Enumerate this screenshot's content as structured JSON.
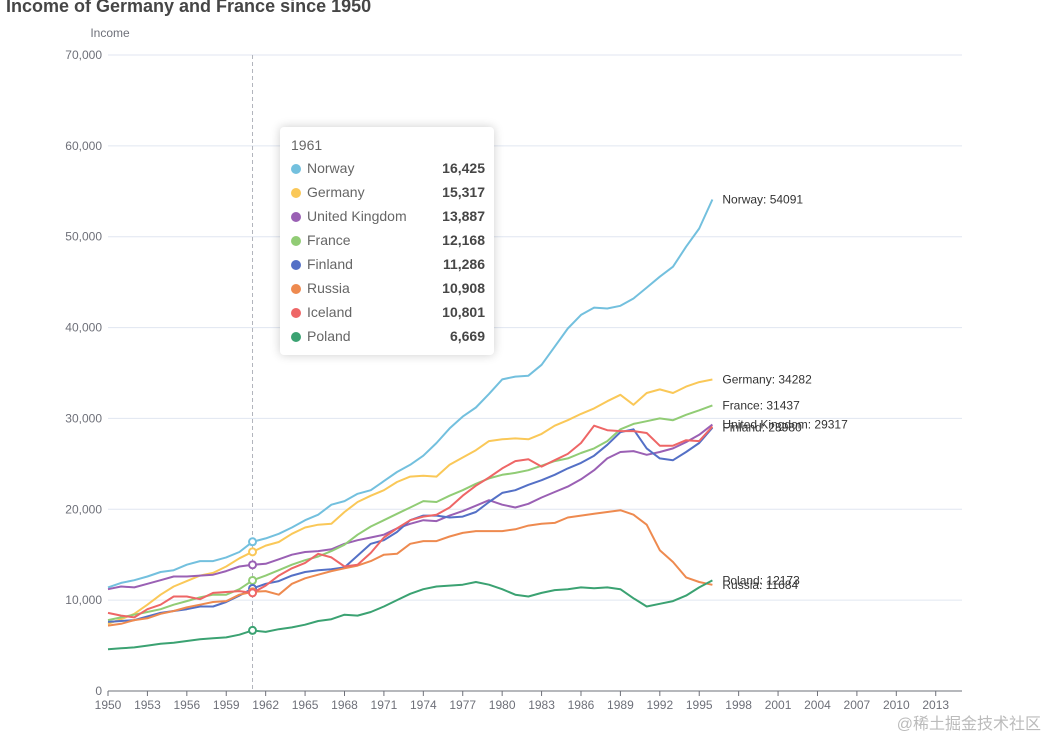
{
  "chart_data": {
    "type": "line",
    "title": "Income of Germany and France since 1950",
    "ylabel": "Income",
    "xlabel": "",
    "ylim": [
      0,
      70000
    ],
    "y_ticks": [
      0,
      10000,
      20000,
      30000,
      40000,
      50000,
      60000,
      70000
    ],
    "y_tick_labels": [
      "0",
      "10,000",
      "20,000",
      "30,000",
      "40,000",
      "50,000",
      "60,000",
      "70,000"
    ],
    "x_ticks": [
      1950,
      1953,
      1956,
      1959,
      1962,
      1965,
      1968,
      1971,
      1974,
      1977,
      1980,
      1983,
      1986,
      1989,
      1992,
      1995,
      1998,
      2001,
      2004,
      2007,
      2010,
      2013
    ],
    "x_tick_labels": [
      "1950",
      "1953",
      "1956",
      "1959",
      "1962",
      "1965",
      "1968",
      "1971",
      "1974",
      "1977",
      "1980",
      "1983",
      "1986",
      "1989",
      "1992",
      "1995",
      "1998",
      "2001",
      "2004",
      "2007",
      "2010",
      "2013"
    ],
    "xlim": [
      1950,
      2015
    ],
    "grid": true,
    "x_start": 1950,
    "x_end": 1996,
    "series": [
      {
        "name": "Norway",
        "color": "#73c0de",
        "end_label": "Norway: 54091",
        "values": [
          11400,
          11900,
          12200,
          12600,
          13100,
          13300,
          13900,
          14300,
          14300,
          14700,
          15300,
          16425,
          16800,
          17300,
          18000,
          18800,
          19400,
          20500,
          20900,
          21700,
          22100,
          23100,
          24100,
          24900,
          25900,
          27300,
          28900,
          30200,
          31200,
          32700,
          34300,
          34600,
          34700,
          35900,
          37900,
          39900,
          41400,
          42200,
          42100,
          42400,
          43200,
          44400,
          45600,
          46700,
          48900,
          50900,
          54091
        ]
      },
      {
        "name": "Germany",
        "color": "#fac858",
        "end_label": "Germany: 34282",
        "values": [
          7400,
          7900,
          8500,
          9500,
          10600,
          11500,
          12100,
          12700,
          13000,
          13700,
          14600,
          15317,
          16000,
          16400,
          17300,
          18000,
          18300,
          18400,
          19700,
          20800,
          21500,
          22100,
          23000,
          23600,
          23700,
          23600,
          24900,
          25700,
          26500,
          27500,
          27700,
          27800,
          27700,
          28300,
          29200,
          29800,
          30500,
          31100,
          31900,
          32600,
          31500,
          32800,
          33200,
          32800,
          33500,
          34000,
          34282
        ]
      },
      {
        "name": "United Kingdom",
        "color": "#9a60b4",
        "end_label": "United Kingdom: 29317",
        "values": [
          11200,
          11500,
          11400,
          11800,
          12200,
          12600,
          12600,
          12700,
          12800,
          13200,
          13700,
          13887,
          14000,
          14500,
          15000,
          15300,
          15400,
          15600,
          16200,
          16600,
          16900,
          17200,
          17900,
          18400,
          18800,
          18700,
          19300,
          19800,
          20400,
          21000,
          20500,
          20200,
          20600,
          21300,
          21900,
          22500,
          23300,
          24300,
          25600,
          26300,
          26400,
          26000,
          26300,
          26700,
          27400,
          28200,
          29317
        ]
      },
      {
        "name": "France",
        "color": "#91cc75",
        "end_label": "France: 31437",
        "values": [
          7800,
          8100,
          8400,
          8700,
          9000,
          9500,
          9900,
          10300,
          10600,
          10600,
          11200,
          12168,
          12700,
          13300,
          13900,
          14400,
          14800,
          15400,
          16100,
          17200,
          18100,
          18800,
          19500,
          20200,
          20900,
          20800,
          21500,
          22100,
          22800,
          23400,
          23800,
          24000,
          24300,
          24800,
          25300,
          25600,
          26200,
          26700,
          27500,
          28800,
          29400,
          29700,
          30000,
          29800,
          30400,
          30900,
          31437
        ]
      },
      {
        "name": "Finland",
        "color": "#5470c6",
        "end_label": "Finland: 28980",
        "values": [
          7600,
          7700,
          7800,
          8200,
          8600,
          8800,
          9000,
          9300,
          9300,
          9800,
          10500,
          11286,
          11800,
          12100,
          12700,
          13100,
          13300,
          13400,
          13600,
          14900,
          16200,
          16600,
          17500,
          18800,
          19300,
          19300,
          19100,
          19200,
          19700,
          20800,
          21800,
          22100,
          22700,
          23200,
          23800,
          24500,
          25100,
          25900,
          27100,
          28500,
          28800,
          26700,
          25600,
          25400,
          26300,
          27300,
          28980
        ]
      },
      {
        "name": "Russia",
        "color": "#ee8a4f",
        "end_label": "Russia: 11684",
        "values": [
          7200,
          7400,
          7800,
          8000,
          8500,
          8800,
          9200,
          9500,
          9800,
          9900,
          10600,
          10908,
          11000,
          10600,
          11800,
          12400,
          12800,
          13200,
          13500,
          13800,
          14300,
          15000,
          15100,
          16200,
          16500,
          16500,
          17000,
          17400,
          17600,
          17600,
          17600,
          17800,
          18200,
          18400,
          18500,
          19100,
          19300,
          19500,
          19700,
          19900,
          19400,
          18300,
          15500,
          14200,
          12500,
          12000,
          11684
        ]
      },
      {
        "name": "Iceland",
        "color": "#ee6666",
        "end_label": "",
        "values": [
          8600,
          8300,
          8100,
          9000,
          9500,
          10400,
          10400,
          10100,
          10800,
          10900,
          11000,
          10801,
          11600,
          12700,
          13500,
          14100,
          15100,
          14700,
          13700,
          13900,
          15200,
          16900,
          17900,
          18800,
          19200,
          19400,
          20200,
          21500,
          22600,
          23500,
          24500,
          25300,
          25500,
          24700,
          25400,
          26100,
          27300,
          29200,
          28700,
          28600,
          28600,
          28400,
          27000,
          27000,
          27600,
          27500,
          29100
        ]
      },
      {
        "name": "Poland",
        "color": "#3ba272",
        "end_label": "Poland: 12173",
        "values": [
          4600,
          4700,
          4800,
          5000,
          5200,
          5300,
          5500,
          5700,
          5800,
          5900,
          6200,
          6669,
          6500,
          6800,
          7000,
          7300,
          7700,
          7900,
          8400,
          8300,
          8700,
          9300,
          10000,
          10700,
          11200,
          11500,
          11600,
          11700,
          12000,
          11700,
          11200,
          10600,
          10400,
          10800,
          11100,
          11200,
          11400,
          11300,
          11400,
          11200,
          10200,
          9300,
          9600,
          9900,
          10500,
          11400,
          12173
        ]
      }
    ]
  },
  "tooltip": {
    "year": "1961",
    "rows": [
      {
        "name": "Norway",
        "value": "16,425",
        "color": "#73c0de"
      },
      {
        "name": "Germany",
        "value": "15,317",
        "color": "#fac858"
      },
      {
        "name": "United Kingdom",
        "value": "13,887",
        "color": "#9a60b4"
      },
      {
        "name": "France",
        "value": "12,168",
        "color": "#91cc75"
      },
      {
        "name": "Finland",
        "value": "11,286",
        "color": "#5470c6"
      },
      {
        "name": "Russia",
        "value": "10,908",
        "color": "#ee8a4f"
      },
      {
        "name": "Iceland",
        "value": "10,801",
        "color": "#ee6666"
      },
      {
        "name": "Poland",
        "value": "6,669",
        "color": "#3ba272"
      }
    ]
  },
  "pointer_year": 1961,
  "watermark": "@稀土掘金技术社区"
}
